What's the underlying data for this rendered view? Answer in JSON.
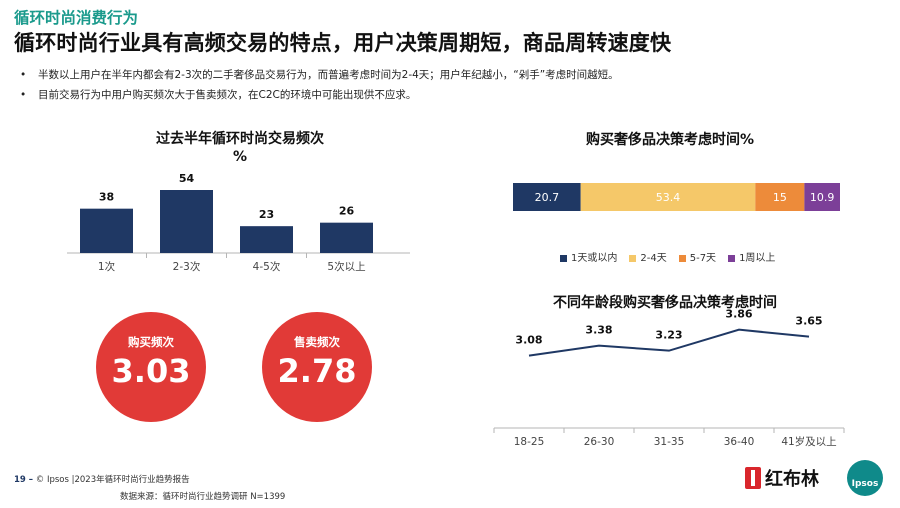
{
  "header": {
    "section": "循环时尚消费行为",
    "headline": "循环时尚行业具有高频交易的特点，用户决策周期短，商品周转速度快"
  },
  "bullets": [
    "半数以上用户在半年内都会有2-3次的二手奢侈品交易行为，而普遍考虑时间为2-4天；用户年纪越小，“剁手”考虑时间越短。",
    "目前交易行为中用户购买频次大于售卖频次，在C2C的环境中可能出现供不应求。"
  ],
  "bullet_glyph": "•",
  "kpis": {
    "buy": {
      "label": "购买频次",
      "value": "3.03"
    },
    "sell": {
      "label": "售卖频次",
      "value": "2.78"
    }
  },
  "footer": {
    "page": "19 –",
    "copyright": "© Ipsos |2023年循环时尚行业趋势报告",
    "source": "数据来源：循环时尚行业趋势调研 N=1399",
    "logo_text": "红布林",
    "ipsos_logo": "Ipsos"
  },
  "colors": {
    "navy": "#1f3864",
    "yellow": "#f5c869",
    "orange": "#ed8b3a",
    "purple": "#7c3f98",
    "red": "#e13a37",
    "teal": "#1a9a8c"
  },
  "chart_data": [
    {
      "type": "bar",
      "title": "过去半年循环时尚交易频次",
      "subtitle": "%",
      "categories": [
        "1次",
        "2-3次",
        "4-5次",
        "5次以上"
      ],
      "values": [
        38,
        54,
        23,
        26
      ],
      "ylim": [
        0,
        60
      ],
      "grid": false
    },
    {
      "type": "bar",
      "orientation": "horizontal-stacked",
      "title": "购买奢侈品决策考虑时间%",
      "series": [
        {
          "name": "1天或以内",
          "values": [
            20.7
          ]
        },
        {
          "name": "2-4天",
          "values": [
            53.4
          ]
        },
        {
          "name": "5-7天",
          "values": [
            15
          ]
        },
        {
          "name": "1周以上",
          "values": [
            10.9
          ]
        }
      ],
      "legend": "bottom"
    },
    {
      "type": "line",
      "title": "不同年龄段购买奢侈品决策考虑时间",
      "categories": [
        "18-25",
        "26-30",
        "31-35",
        "36-40",
        "41岁及以上"
      ],
      "values": [
        3.08,
        3.38,
        3.23,
        3.86,
        3.65
      ],
      "grid": false
    }
  ]
}
